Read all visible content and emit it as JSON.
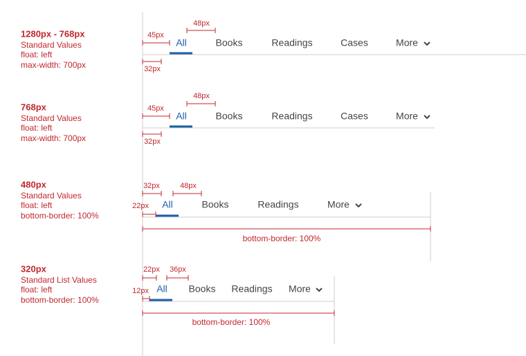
{
  "sections": [
    {
      "title": "1280px - 768px",
      "notes": [
        "Standard Values",
        "float: left",
        "max-width: 700px"
      ],
      "tabs": [
        "All",
        "Books",
        "Readings",
        "Cases",
        "More"
      ],
      "dimensions": [
        "45px",
        "48px",
        "32px"
      ]
    },
    {
      "title": "768px",
      "notes": [
        "Standard Values",
        "float: left",
        "max-width: 700px"
      ],
      "tabs": [
        "All",
        "Books",
        "Readings",
        "Cases",
        "More"
      ],
      "dimensions": [
        "45px",
        "48px",
        "32px"
      ]
    },
    {
      "title": "480px",
      "notes": [
        "Standard Values",
        "float: left",
        "bottom-border: 100%"
      ],
      "tabs": [
        "All",
        "Books",
        "Readings",
        "More"
      ],
      "dimensions": [
        "32px",
        "48px",
        "22px"
      ],
      "border_label": "bottom-border: 100%"
    },
    {
      "title": "320px",
      "notes": [
        "Standard List Values",
        "float: left",
        "bottom-border: 100%"
      ],
      "tabs": [
        "All",
        "Books",
        "Readings",
        "More"
      ],
      "dimensions": [
        "22px",
        "36px",
        "12px"
      ],
      "border_label": "bottom-border: 100%"
    }
  ]
}
